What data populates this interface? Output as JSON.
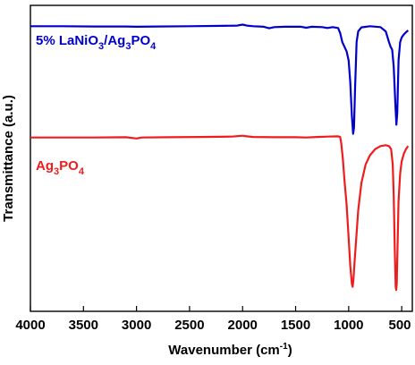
{
  "chart_data": {
    "type": "line",
    "title": "",
    "xlabel": "Wavenumber (cm-1)",
    "xlabel_main": "Wavenumber (cm",
    "xlabel_sup": "-1",
    "xlabel_close": ")",
    "ylabel": "Transmittance (a.u.)",
    "xlim": [
      4000,
      400
    ],
    "x_reversed": true,
    "x_ticks": [
      4000,
      3500,
      3000,
      2500,
      2000,
      1500,
      1000,
      500
    ],
    "y_ticks_shown": false,
    "ylim": [
      0,
      100
    ],
    "grid": false,
    "series": [
      {
        "name": "5% LaNiO3/Ag3PO4",
        "label_parts": [
          {
            "text": "5% LaNiO",
            "sub": false
          },
          {
            "text": "3",
            "sub": true
          },
          {
            "text": "/Ag",
            "sub": false
          },
          {
            "text": "3",
            "sub": true
          },
          {
            "text": "PO",
            "sub": false
          },
          {
            "text": "4",
            "sub": true
          }
        ],
        "color": "#0000cc",
        "points": [
          [
            4000,
            93.2
          ],
          [
            3700,
            93.2
          ],
          [
            3400,
            93.1
          ],
          [
            3100,
            93.1
          ],
          [
            3000,
            93.0
          ],
          [
            2800,
            93.1
          ],
          [
            2500,
            93.2
          ],
          [
            2200,
            93.3
          ],
          [
            2050,
            93.4
          ],
          [
            2000,
            93.7
          ],
          [
            1960,
            93.4
          ],
          [
            1900,
            93.2
          ],
          [
            1800,
            93.0
          ],
          [
            1750,
            92.5
          ],
          [
            1700,
            92.9
          ],
          [
            1600,
            93.0
          ],
          [
            1450,
            93.0
          ],
          [
            1400,
            92.7
          ],
          [
            1350,
            93.0
          ],
          [
            1250,
            92.9
          ],
          [
            1200,
            92.6
          ],
          [
            1150,
            92.9
          ],
          [
            1100,
            92.6
          ],
          [
            1080,
            91.0
          ],
          [
            1060,
            88.0
          ],
          [
            1040,
            86.5
          ],
          [
            1020,
            85.0
          ],
          [
            1000,
            82.0
          ],
          [
            985,
            75.0
          ],
          [
            970,
            64.0
          ],
          [
            958,
            58.0
          ],
          [
            950,
            60.0
          ],
          [
            940,
            72.0
          ],
          [
            925,
            88.0
          ],
          [
            910,
            91.5
          ],
          [
            880,
            92.8
          ],
          [
            800,
            93.2
          ],
          [
            700,
            92.9
          ],
          [
            650,
            91.5
          ],
          [
            620,
            88.0
          ],
          [
            605,
            86.5
          ],
          [
            590,
            85.5
          ],
          [
            575,
            80.0
          ],
          [
            560,
            68.0
          ],
          [
            550,
            61.0
          ],
          [
            542,
            65.0
          ],
          [
            530,
            82.0
          ],
          [
            515,
            88.0
          ],
          [
            500,
            89.5
          ],
          [
            480,
            90.5
          ],
          [
            460,
            91.2
          ],
          [
            440,
            91.8
          ]
        ]
      },
      {
        "name": "Ag3PO4",
        "label_parts": [
          {
            "text": "Ag",
            "sub": false
          },
          {
            "text": "3",
            "sub": true
          },
          {
            "text": "PO",
            "sub": false
          },
          {
            "text": "4",
            "sub": true
          }
        ],
        "color": "#ee1c1c",
        "points": [
          [
            4000,
            56.8
          ],
          [
            3700,
            56.8
          ],
          [
            3400,
            56.8
          ],
          [
            3100,
            56.9
          ],
          [
            3000,
            56.5
          ],
          [
            2950,
            56.8
          ],
          [
            2700,
            56.9
          ],
          [
            2400,
            57.0
          ],
          [
            2100,
            57.1
          ],
          [
            2000,
            57.4
          ],
          [
            1960,
            57.2
          ],
          [
            1900,
            57.0
          ],
          [
            1700,
            56.9
          ],
          [
            1500,
            56.9
          ],
          [
            1400,
            56.8
          ],
          [
            1300,
            57.0
          ],
          [
            1200,
            57.1
          ],
          [
            1100,
            57.2
          ],
          [
            1080,
            57.0
          ],
          [
            1070,
            55.0
          ],
          [
            1055,
            50.0
          ],
          [
            1040,
            43.0
          ],
          [
            1020,
            35.0
          ],
          [
            1000,
            24.0
          ],
          [
            985,
            15.0
          ],
          [
            970,
            9.0
          ],
          [
            962,
            8.0
          ],
          [
            955,
            10.5
          ],
          [
            945,
            16.0
          ],
          [
            930,
            23.0
          ],
          [
            910,
            33.0
          ],
          [
            880,
            42.0
          ],
          [
            840,
            48.0
          ],
          [
            800,
            51.0
          ],
          [
            750,
            53.0
          ],
          [
            700,
            54.0
          ],
          [
            650,
            54.3
          ],
          [
            620,
            54.0
          ],
          [
            600,
            53.0
          ],
          [
            585,
            48.0
          ],
          [
            575,
            38.0
          ],
          [
            565,
            20.0
          ],
          [
            557,
            8.0
          ],
          [
            552,
            7.0
          ],
          [
            547,
            9.0
          ],
          [
            540,
            20.0
          ],
          [
            530,
            36.0
          ],
          [
            515,
            45.0
          ],
          [
            500,
            49.0
          ],
          [
            480,
            51.5
          ],
          [
            460,
            53.0
          ],
          [
            440,
            54.0
          ]
        ]
      }
    ]
  }
}
